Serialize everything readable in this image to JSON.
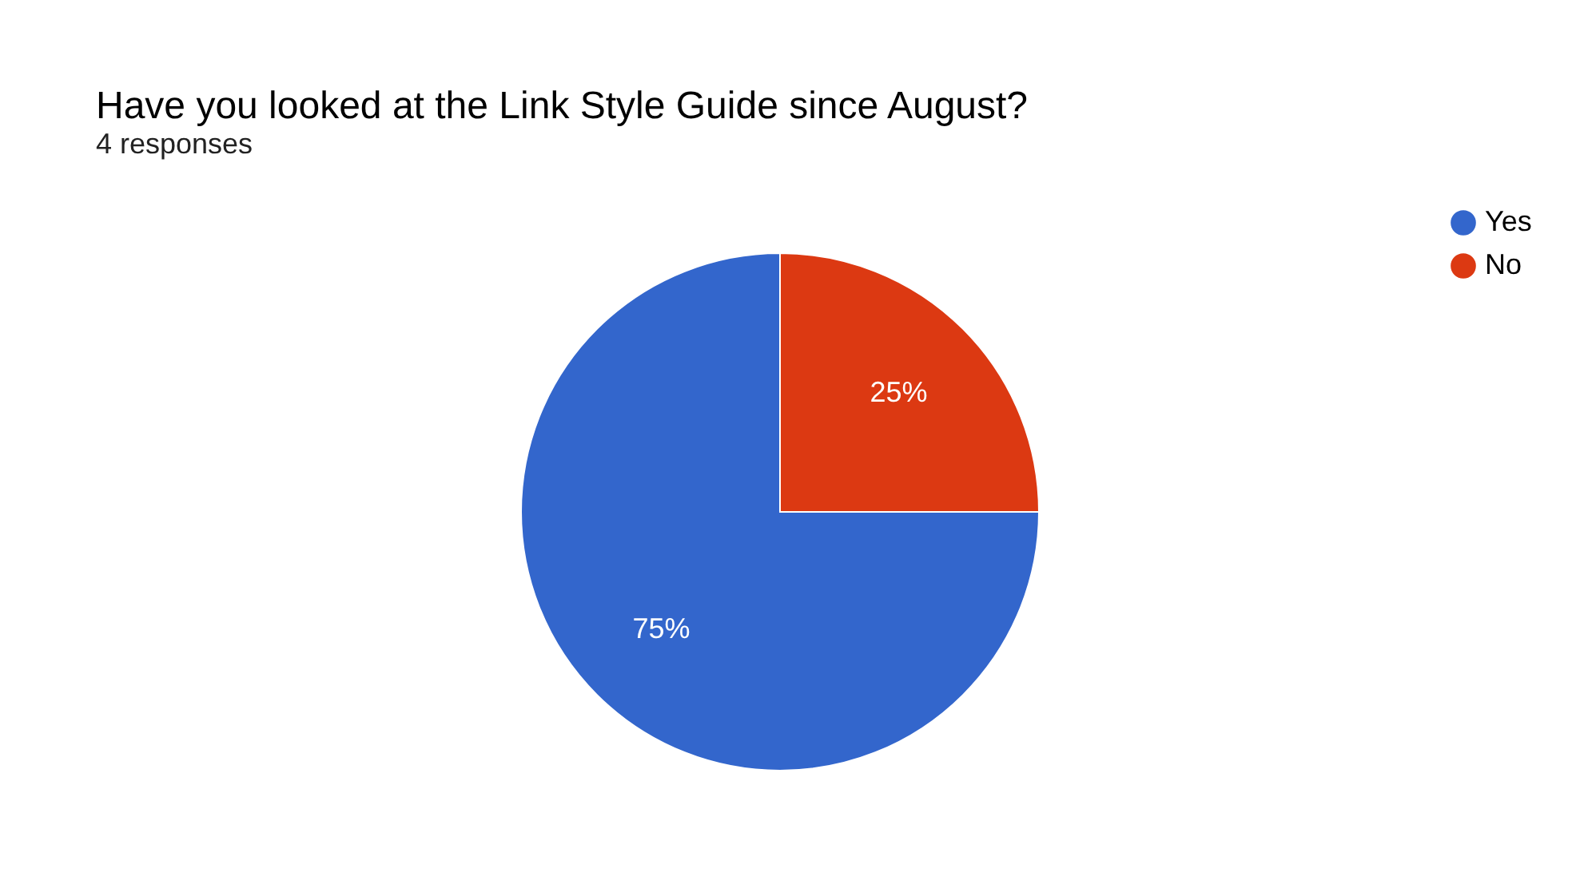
{
  "chart_data": {
    "type": "pie",
    "title": "Have you looked at the Link Style Guide since August?",
    "subtitle": "4 responses",
    "categories": [
      "Yes",
      "No"
    ],
    "values": [
      75,
      25
    ],
    "colors": [
      "#3366cc",
      "#dc3912"
    ],
    "value_labels": [
      "75%",
      "25%"
    ],
    "legend": "right"
  }
}
